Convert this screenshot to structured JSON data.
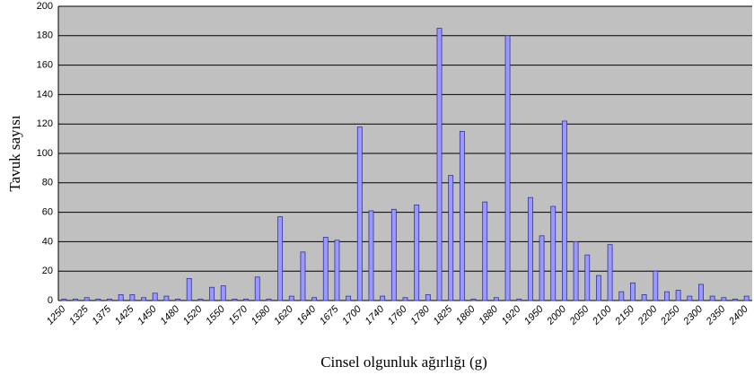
{
  "chart_data": {
    "type": "bar",
    "x_label": "Cinsel olgunluk ağırlığı (g)",
    "y_label": "Tavuk sayısı",
    "categories": [
      "1250",
      null,
      "1325",
      null,
      "1375",
      null,
      "1425",
      null,
      "1450",
      null,
      "1480",
      null,
      "1520",
      null,
      "1550",
      null,
      "1570",
      null,
      "1580",
      null,
      "1620",
      null,
      "1640",
      null,
      "1675",
      null,
      "1700",
      null,
      "1740",
      null,
      "1760",
      null,
      "1780",
      null,
      "1825",
      null,
      "1860",
      null,
      "1880",
      null,
      "1920",
      null,
      "1950",
      null,
      "2000",
      null,
      "2050",
      null,
      "2100",
      null,
      "2150",
      null,
      "2200",
      null,
      "2250",
      null,
      "2300",
      null,
      "2350",
      null,
      "2400"
    ],
    "values": [
      1,
      1,
      2,
      1,
      1,
      4,
      4,
      2,
      5,
      3,
      1,
      15,
      1,
      9,
      10,
      1,
      1,
      16,
      1,
      57,
      3,
      33,
      2,
      43,
      41,
      3,
      118,
      61,
      3,
      62,
      2,
      65,
      4,
      185,
      85,
      115,
      1,
      67,
      2,
      180,
      1,
      70,
      44,
      64,
      122,
      40,
      31,
      17,
      38,
      6,
      12,
      4,
      20,
      6,
      7,
      3,
      11,
      3,
      2,
      1,
      3
    ],
    "color": "#9999ff",
    "ylim": [
      0,
      200
    ],
    "yticks": [
      0,
      20,
      40,
      60,
      80,
      100,
      120,
      140,
      160,
      180,
      200
    ],
    "grid": true
  }
}
